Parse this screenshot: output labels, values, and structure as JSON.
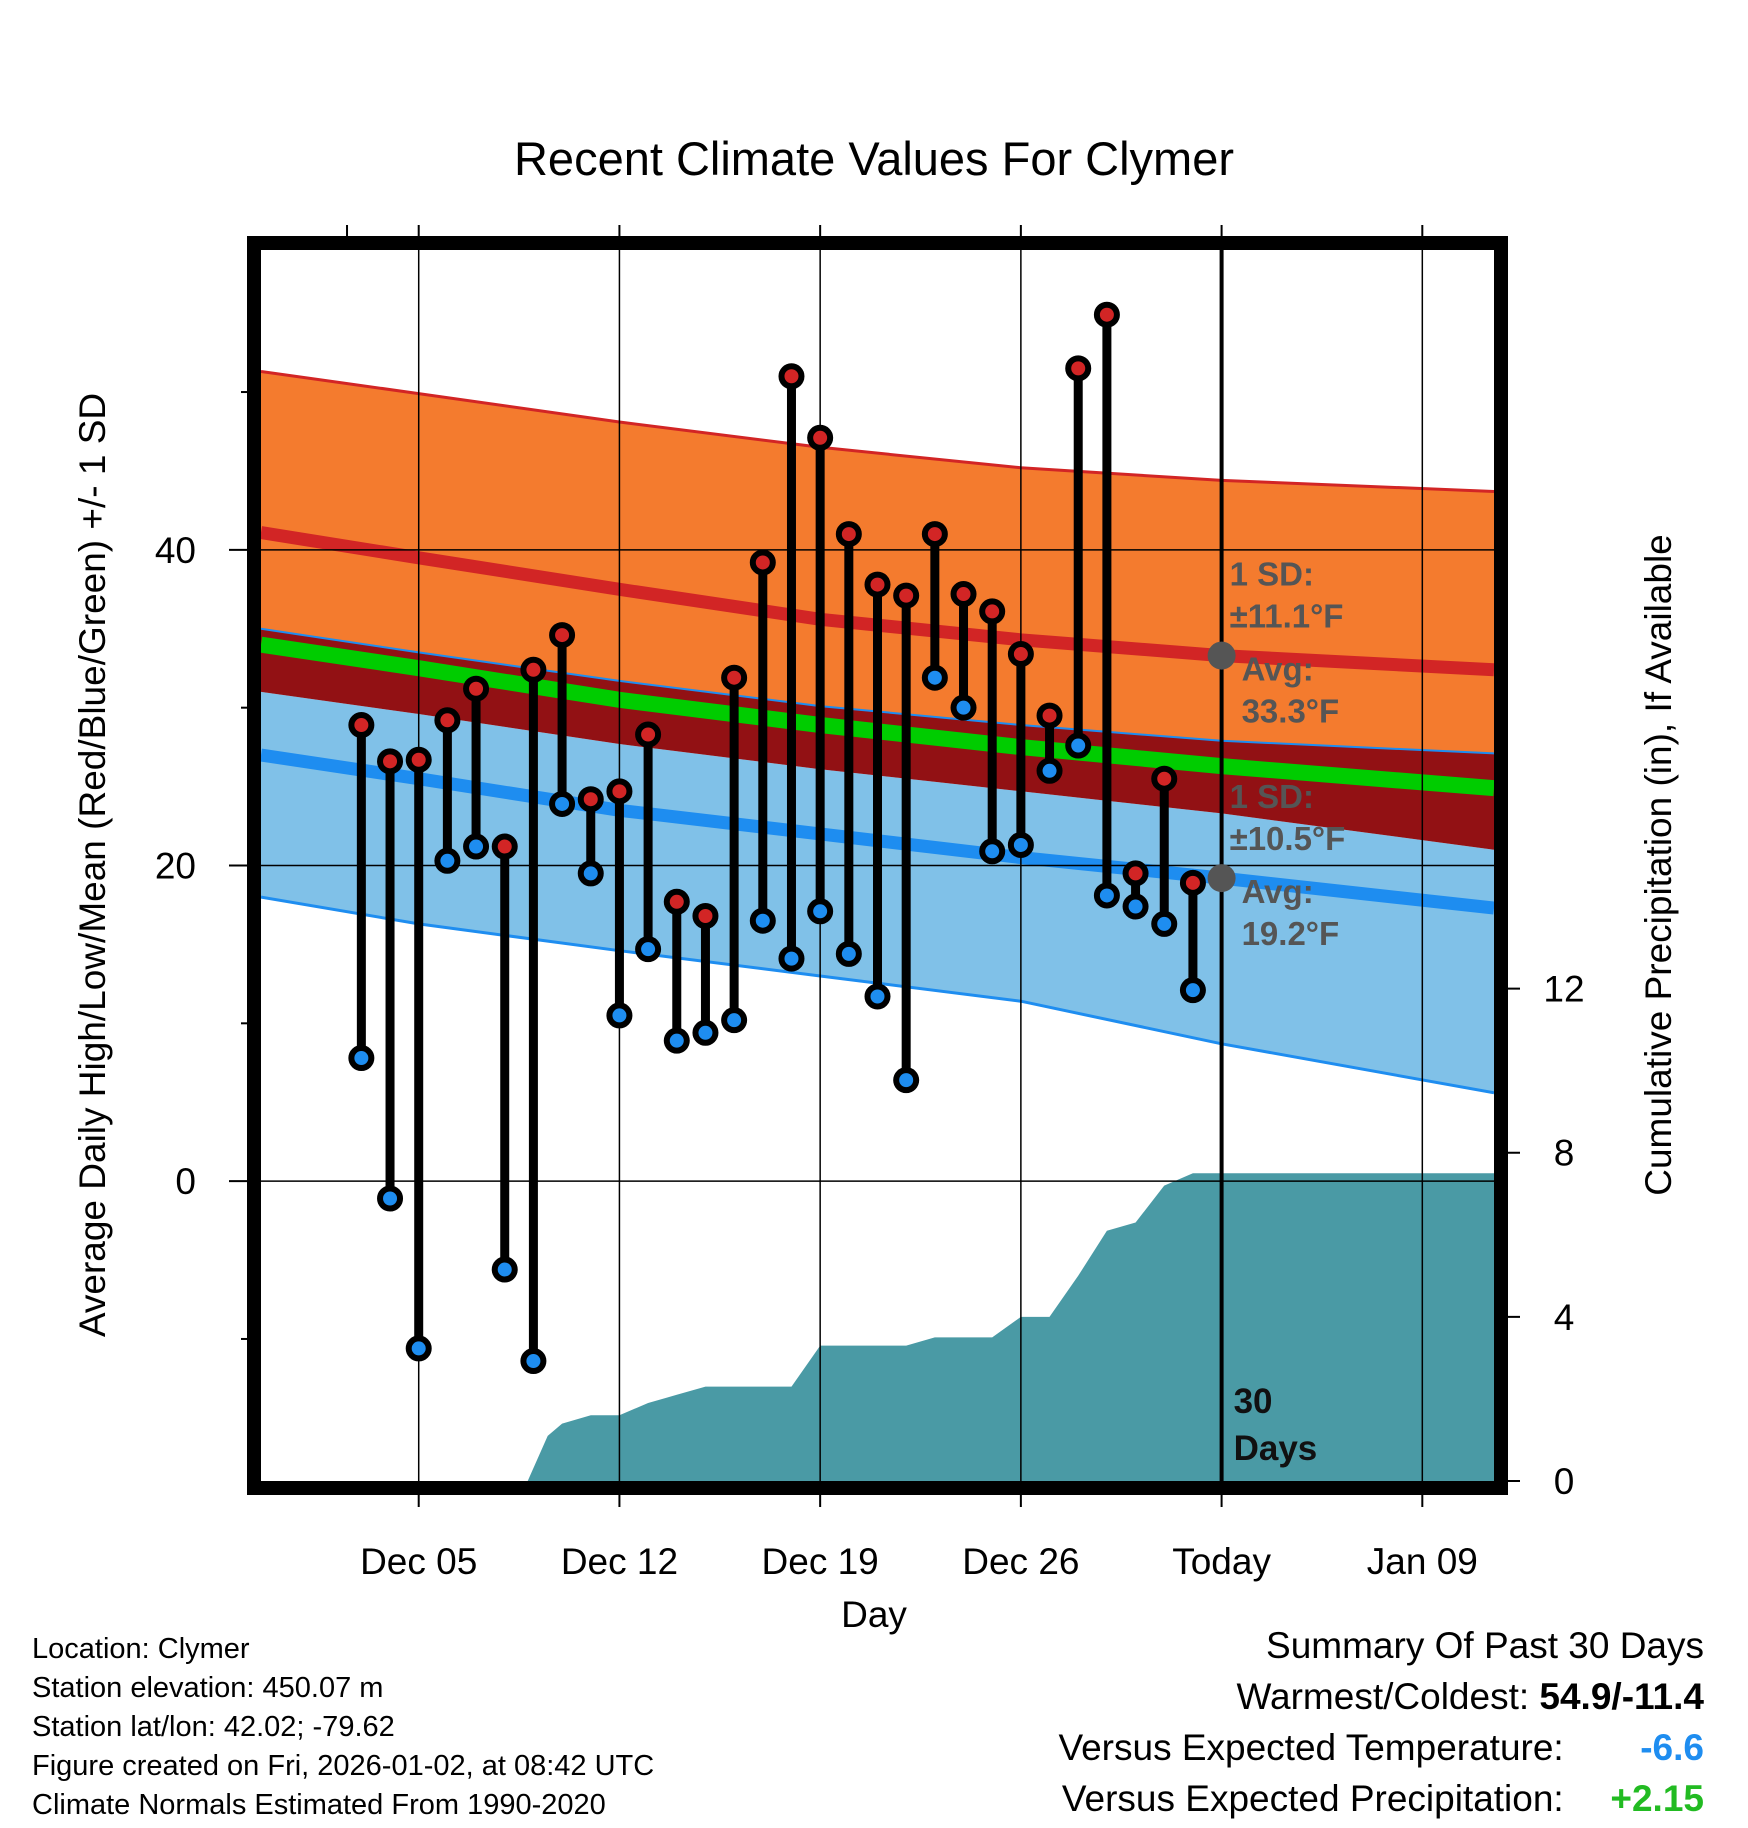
{
  "chart_data": {
    "type": "line",
    "title": "Recent Climate Values For Clymer",
    "xlabel": "Day",
    "ylabel": "Average Daily High/Low/Mean (Red/Blue/Green) +/- 1 SD",
    "y2label": "Cumulative Precipitation (in), If Available",
    "x_range_days": [
      -33.5,
      9.5
    ],
    "ylim": [
      -19,
      59
    ],
    "y2lim": [
      0,
      30
    ],
    "x_ticks": [
      {
        "day": -28,
        "label": "Dec 05"
      },
      {
        "day": -21,
        "label": "Dec 12"
      },
      {
        "day": -14,
        "label": "Dec 19"
      },
      {
        "day": -7,
        "label": "Dec 26"
      },
      {
        "day": 0,
        "label": "Today"
      },
      {
        "day": 7,
        "label": "Jan 09"
      }
    ],
    "y_ticks": [
      0,
      20,
      40
    ],
    "y_minor_ticks": [
      -10,
      10,
      30,
      50
    ],
    "y2_ticks": [
      0,
      4,
      8,
      12
    ],
    "colors": {
      "high_band": "#f47b2e",
      "high_line": "#d22525",
      "low_band": "#80c1e8",
      "low_line": "#1e8df0",
      "mean_band": "#921114",
      "mean_line": "#00cc00",
      "precip": "#4a9aa5",
      "stem": "#000000",
      "high_marker": "#d22525",
      "low_marker": "#1e8df0",
      "annot": "#555555"
    },
    "normals": {
      "x": [
        -33.5,
        -28,
        -21,
        -14,
        -7,
        0,
        9.5
      ],
      "high_avg": [
        41.1,
        39.5,
        37.5,
        35.6,
        34.3,
        33.3,
        32.4
      ],
      "high_upper": [
        51.3,
        49.9,
        48.1,
        46.5,
        45.2,
        44.4,
        43.7
      ],
      "high_lower": [
        35.0,
        33.5,
        31.7,
        30.1,
        28.9,
        27.9,
        27.1
      ],
      "mean_avg": [
        34.0,
        32.5,
        30.5,
        28.9,
        27.5,
        26.3,
        24.9
      ],
      "low_avg": [
        27.0,
        25.5,
        23.5,
        22.0,
        20.5,
        19.2,
        17.3
      ],
      "low_upper": [
        31.0,
        29.6,
        27.7,
        26.1,
        24.7,
        23.3,
        21.0
      ],
      "low_lower": [
        18.0,
        16.3,
        14.6,
        13.0,
        11.4,
        8.7,
        5.6
      ]
    },
    "series": [
      {
        "name": "Daily High",
        "days": [
          -30,
          -29,
          -28,
          -27,
          -26,
          -25,
          -24,
          -23,
          -22,
          -21,
          -20,
          -19,
          -18,
          -17,
          -16,
          -15,
          -14,
          -13,
          -12,
          -11,
          -10,
          -9,
          -8,
          -7,
          -6,
          -5,
          -4,
          -3,
          -2,
          -1
        ],
        "values": [
          28.9,
          26.6,
          26.7,
          29.2,
          31.2,
          21.2,
          32.4,
          34.6,
          24.2,
          24.7,
          28.3,
          17.7,
          16.8,
          31.9,
          39.2,
          51.0,
          47.1,
          41.0,
          37.8,
          37.1,
          41.0,
          37.2,
          36.1,
          33.4,
          29.5,
          51.5,
          54.9,
          19.5,
          25.5,
          18.9
        ]
      },
      {
        "name": "Daily Low",
        "days": [
          -30,
          -29,
          -28,
          -27,
          -26,
          -25,
          -24,
          -23,
          -22,
          -21,
          -20,
          -19,
          -18,
          -17,
          -16,
          -15,
          -14,
          -13,
          -12,
          -11,
          -10,
          -9,
          -8,
          -7,
          -6,
          -5,
          -4,
          -3,
          -2,
          -1
        ],
        "values": [
          7.8,
          -1.1,
          -10.6,
          20.3,
          21.2,
          -5.6,
          -11.4,
          23.9,
          19.5,
          10.5,
          14.7,
          8.9,
          9.4,
          10.2,
          16.5,
          14.1,
          17.1,
          14.4,
          11.7,
          6.4,
          31.9,
          30.0,
          20.9,
          21.3,
          26.0,
          27.6,
          18.1,
          17.4,
          16.3,
          12.1
        ]
      },
      {
        "name": "Cumulative Precipitation",
        "days": [
          -33.5,
          -24.2,
          -23.5,
          -23,
          -22,
          -21,
          -20,
          -19,
          -18,
          -17,
          -16,
          -15,
          -14,
          -13,
          -12,
          -11,
          -10,
          -9,
          -8,
          -7,
          -6,
          -5,
          -4,
          -3,
          -2,
          -1,
          0,
          9.5
        ],
        "values": [
          0,
          0,
          1.1,
          1.4,
          1.6,
          1.6,
          1.9,
          2.1,
          2.3,
          2.3,
          2.3,
          2.3,
          3.3,
          3.3,
          3.3,
          3.3,
          3.5,
          3.5,
          3.5,
          4.0,
          4.0,
          5.0,
          6.1,
          6.3,
          7.2,
          7.5,
          7.5,
          7.5
        ]
      }
    ],
    "annotations": {
      "high_sd_label": "1 SD:",
      "high_sd_value": "±11.1°F",
      "high_avg_label": "Avg:",
      "high_avg_value": "33.3°F",
      "high_avg": 33.3,
      "low_sd_label": "1 SD:",
      "low_sd_value": "±10.5°F",
      "low_avg_label": "Avg:",
      "low_avg_value": "19.2°F",
      "low_avg": 19.2,
      "days_count": "30",
      "days_word": "Days"
    }
  },
  "info": {
    "location": "Location: Clymer",
    "elevation": "Station elevation: 450.07 m",
    "latlon": "Station lat/lon: 42.02; -79.62",
    "created": "Figure created on Fri, 2026-01-02, at 08:42 UTC",
    "normals": "Climate Normals Estimated From 1990-2020"
  },
  "summary": {
    "title": "Summary Of Past 30 Days",
    "warm_cold_label": "Warmest/Coldest:",
    "warm_cold_value": "54.9/-11.4",
    "temp_label": "Versus Expected Temperature:",
    "temp_value": "-6.6",
    "temp_color": "#1e8df0",
    "precip_label": "Versus Expected Precipitation:",
    "precip_value": "+2.15",
    "precip_color": "#22bb22"
  }
}
